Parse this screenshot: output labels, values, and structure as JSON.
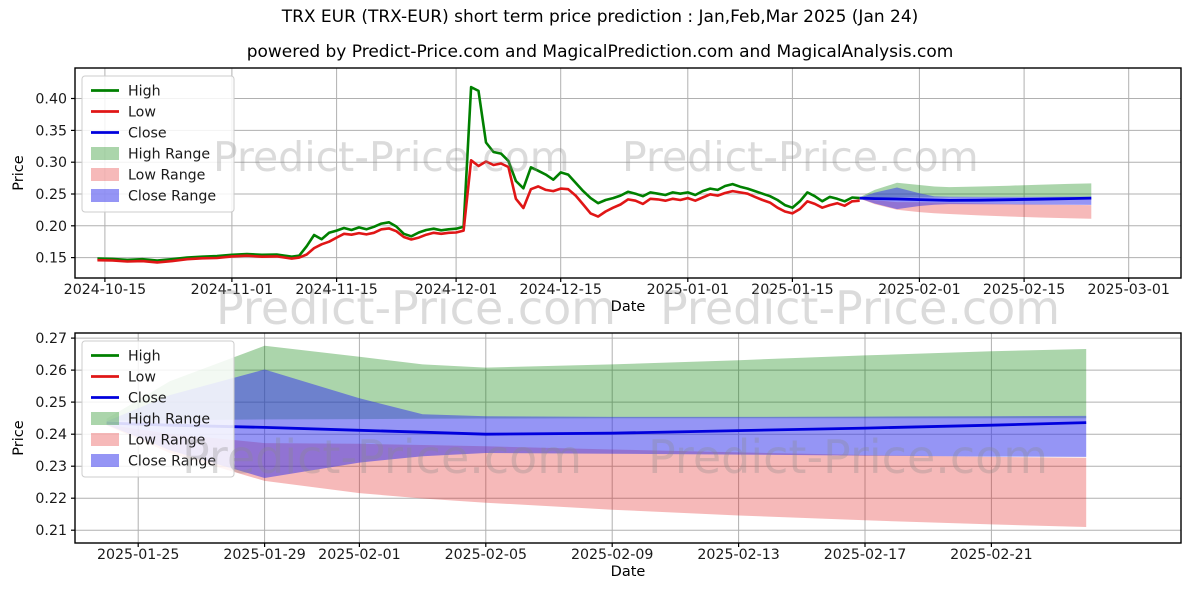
{
  "page": {
    "title": "TRX EUR (TRX-EUR) short term price prediction : Jan,Feb,Mar 2025 (Jan 24)",
    "subtitle": "powered by Predict-Price.com and MagicalPrediction.com and MagicalAnalysis.com"
  },
  "watermark": {
    "text": "Predict-Price.com"
  },
  "colors": {
    "high": "#008000",
    "low": "#e01616",
    "close": "#0000dd",
    "high_fill": "rgba(0,128,0,0.33)",
    "low_fill": "rgba(225,22,22,0.30)",
    "close_fill": "rgba(51,51,235,0.52)",
    "grid": "#b0b0b0",
    "spine": "#000000",
    "tick_text": "#1a1a1a"
  },
  "legend": {
    "items": [
      {
        "label": "High",
        "kind": "line",
        "color_key": "high"
      },
      {
        "label": "Low",
        "kind": "line",
        "color_key": "low"
      },
      {
        "label": "Close",
        "kind": "line",
        "color_key": "close"
      },
      {
        "label": "High Range",
        "kind": "patch",
        "color_key": "high_fill"
      },
      {
        "label": "Low Range",
        "kind": "patch",
        "color_key": "low_fill"
      },
      {
        "label": "Close Range",
        "kind": "patch",
        "color_key": "close_fill"
      }
    ]
  },
  "chart_data": [
    {
      "type": "line",
      "name": "main-price-chart",
      "xlabel": "Date",
      "ylabel": "Price",
      "x_domain": [
        "2024-10-11",
        "2025-03-08"
      ],
      "y_domain": [
        0.118,
        0.448
      ],
      "x_ticks": [
        "2024-10-15",
        "2024-11-01",
        "2024-11-15",
        "2024-12-01",
        "2024-12-15",
        "2025-01-01",
        "2025-01-15",
        "2025-02-01",
        "2025-02-15",
        "2025-03-01"
      ],
      "y_ticks": [
        "0.15",
        "0.20",
        "0.25",
        "0.30",
        "0.35",
        "0.40"
      ],
      "grid": true,
      "legend_position": "upper-left",
      "history": {
        "dates": [
          "2024-10-14",
          "2024-10-16",
          "2024-10-18",
          "2024-10-20",
          "2024-10-22",
          "2024-10-24",
          "2024-10-26",
          "2024-10-28",
          "2024-10-30",
          "2024-11-01",
          "2024-11-03",
          "2024-11-05",
          "2024-11-07",
          "2024-11-09",
          "2024-11-10",
          "2024-11-11",
          "2024-11-12",
          "2024-11-13",
          "2024-11-14",
          "2024-11-15",
          "2024-11-16",
          "2024-11-17",
          "2024-11-18",
          "2024-11-19",
          "2024-11-20",
          "2024-11-21",
          "2024-11-22",
          "2024-11-23",
          "2024-11-24",
          "2024-11-25",
          "2024-11-26",
          "2024-11-27",
          "2024-11-28",
          "2024-11-29",
          "2024-11-30",
          "2024-12-01",
          "2024-12-02",
          "2024-12-03",
          "2024-12-04",
          "2024-12-05",
          "2024-12-06",
          "2024-12-07",
          "2024-12-08",
          "2024-12-09",
          "2024-12-10",
          "2024-12-11",
          "2024-12-12",
          "2024-12-13",
          "2024-12-14",
          "2024-12-15",
          "2024-12-16",
          "2024-12-17",
          "2024-12-18",
          "2024-12-19",
          "2024-12-20",
          "2024-12-21",
          "2024-12-22",
          "2024-12-23",
          "2024-12-24",
          "2024-12-25",
          "2024-12-26",
          "2024-12-27",
          "2024-12-28",
          "2024-12-29",
          "2024-12-30",
          "2024-12-31",
          "2025-01-01",
          "2025-01-02",
          "2025-01-03",
          "2025-01-04",
          "2025-01-05",
          "2025-01-06",
          "2025-01-07",
          "2025-01-08",
          "2025-01-09",
          "2025-01-10",
          "2025-01-11",
          "2025-01-12",
          "2025-01-13",
          "2025-01-14",
          "2025-01-15",
          "2025-01-16",
          "2025-01-17",
          "2025-01-18",
          "2025-01-19",
          "2025-01-20",
          "2025-01-21",
          "2025-01-22",
          "2025-01-23",
          "2025-01-24"
        ],
        "high": [
          0.1485,
          0.148,
          0.1465,
          0.1475,
          0.1455,
          0.1475,
          0.15,
          0.1515,
          0.1525,
          0.1545,
          0.1555,
          0.1545,
          0.155,
          0.1515,
          0.153,
          0.168,
          0.1855,
          0.179,
          0.189,
          0.1925,
          0.1965,
          0.1935,
          0.1975,
          0.1945,
          0.1985,
          0.2035,
          0.2055,
          0.199,
          0.1875,
          0.1835,
          0.1895,
          0.1935,
          0.1955,
          0.193,
          0.1945,
          0.1955,
          0.1985,
          0.418,
          0.412,
          0.331,
          0.316,
          0.3135,
          0.302,
          0.2705,
          0.259,
          0.292,
          0.2865,
          0.2805,
          0.2725,
          0.284,
          0.2805,
          0.2675,
          0.2545,
          0.2435,
          0.2355,
          0.2405,
          0.2435,
          0.2475,
          0.2535,
          0.2505,
          0.2465,
          0.2525,
          0.2505,
          0.2485,
          0.2525,
          0.2505,
          0.2525,
          0.2485,
          0.2545,
          0.2585,
          0.2565,
          0.2625,
          0.2655,
          0.2615,
          0.2585,
          0.2545,
          0.2505,
          0.2465,
          0.2405,
          0.2325,
          0.2285,
          0.2385,
          0.2525,
          0.2465,
          0.2385,
          0.2455,
          0.2425,
          0.2385,
          0.2445,
          0.2435
        ],
        "low": [
          0.146,
          0.1455,
          0.144,
          0.1445,
          0.1425,
          0.1445,
          0.1475,
          0.149,
          0.1495,
          0.152,
          0.153,
          0.1515,
          0.152,
          0.1485,
          0.15,
          0.155,
          0.165,
          0.171,
          0.175,
          0.1815,
          0.1875,
          0.186,
          0.1885,
          0.1865,
          0.189,
          0.1945,
          0.196,
          0.1915,
          0.1825,
          0.1785,
          0.1815,
          0.186,
          0.189,
          0.1875,
          0.189,
          0.1895,
          0.1925,
          0.303,
          0.294,
          0.301,
          0.2955,
          0.298,
          0.2925,
          0.2425,
          0.228,
          0.2575,
          0.262,
          0.2565,
          0.2545,
          0.2585,
          0.2575,
          0.2475,
          0.2335,
          0.2195,
          0.2145,
          0.2225,
          0.2285,
          0.2335,
          0.2415,
          0.2395,
          0.2345,
          0.2425,
          0.2415,
          0.2395,
          0.2425,
          0.2405,
          0.2435,
          0.2395,
          0.2445,
          0.2495,
          0.2475,
          0.2515,
          0.2545,
          0.2525,
          0.2505,
          0.2455,
          0.2405,
          0.2365,
          0.2285,
          0.2225,
          0.2195,
          0.2265,
          0.2385,
          0.2345,
          0.2285,
          0.2325,
          0.2355,
          0.2315,
          0.2385,
          0.2395
        ]
      },
      "prediction": {
        "dates": [
          "2025-01-24",
          "2025-01-26",
          "2025-01-29",
          "2025-02-01",
          "2025-02-03",
          "2025-02-05",
          "2025-02-09",
          "2025-02-13",
          "2025-02-17",
          "2025-02-21",
          "2025-02-24"
        ],
        "close": [
          0.2435,
          0.2428,
          0.2421,
          0.2412,
          0.2406,
          0.24,
          0.2403,
          0.2411,
          0.2419,
          0.2428,
          0.2436
        ],
        "high_max": [
          0.2448,
          0.2565,
          0.2676,
          0.2642,
          0.2618,
          0.2608,
          0.2618,
          0.2631,
          0.2646,
          0.2659,
          0.2666
        ],
        "high_min": [
          0.2442,
          0.2444,
          0.2446,
          0.2447,
          0.2448,
          0.2449,
          0.245,
          0.245,
          0.245,
          0.245,
          0.245
        ],
        "low_max": [
          0.243,
          0.2401,
          0.2372,
          0.237,
          0.2366,
          0.2362,
          0.2352,
          0.2343,
          0.2335,
          0.2329,
          0.2326
        ],
        "low_min": [
          0.2428,
          0.2341,
          0.2254,
          0.2216,
          0.2199,
          0.2186,
          0.2164,
          0.2146,
          0.2131,
          0.2118,
          0.211
        ],
        "close_max": [
          0.244,
          0.2522,
          0.2602,
          0.2512,
          0.2462,
          0.2456,
          0.2454,
          0.2454,
          0.2455,
          0.2456,
          0.2457
        ],
        "close_min": [
          0.243,
          0.235,
          0.2263,
          0.2311,
          0.2331,
          0.2341,
          0.2339,
          0.2336,
          0.2333,
          0.233,
          0.2329
        ]
      }
    },
    {
      "type": "area",
      "name": "prediction-zoom-chart",
      "xlabel": "Date",
      "ylabel": "Price",
      "x_domain": [
        "2025-01-23",
        "2025-02-27"
      ],
      "y_domain": [
        0.206,
        0.2716
      ],
      "x_ticks": [
        "2025-01-25",
        "2025-01-29",
        "2025-02-01",
        "2025-02-05",
        "2025-02-09",
        "2025-02-13",
        "2025-02-17",
        "2025-02-21"
      ],
      "y_ticks": [
        "0.21",
        "0.22",
        "0.23",
        "0.24",
        "0.25",
        "0.26",
        "0.27"
      ],
      "grid": true,
      "legend_position": "upper-left",
      "prediction": {
        "dates": [
          "2025-01-24",
          "2025-01-26",
          "2025-01-29",
          "2025-02-01",
          "2025-02-03",
          "2025-02-05",
          "2025-02-09",
          "2025-02-13",
          "2025-02-17",
          "2025-02-21",
          "2025-02-24"
        ],
        "close": [
          0.2435,
          0.2428,
          0.2421,
          0.2412,
          0.2406,
          0.24,
          0.2403,
          0.2411,
          0.2419,
          0.2428,
          0.2436
        ],
        "high_max": [
          0.2448,
          0.2565,
          0.2676,
          0.2642,
          0.2618,
          0.2608,
          0.2618,
          0.2631,
          0.2646,
          0.2659,
          0.2666
        ],
        "high_min": [
          0.2442,
          0.2444,
          0.2446,
          0.2447,
          0.2448,
          0.2449,
          0.245,
          0.245,
          0.245,
          0.245,
          0.245
        ],
        "low_max": [
          0.243,
          0.2401,
          0.2372,
          0.237,
          0.2366,
          0.2362,
          0.2352,
          0.2343,
          0.2335,
          0.2329,
          0.2326
        ],
        "low_min": [
          0.2428,
          0.2341,
          0.2254,
          0.2216,
          0.2199,
          0.2186,
          0.2164,
          0.2146,
          0.2131,
          0.2118,
          0.211
        ],
        "close_max": [
          0.244,
          0.2522,
          0.2602,
          0.2512,
          0.2462,
          0.2456,
          0.2454,
          0.2454,
          0.2455,
          0.2456,
          0.2457
        ],
        "close_min": [
          0.243,
          0.235,
          0.2263,
          0.2311,
          0.2331,
          0.2341,
          0.2339,
          0.2336,
          0.2333,
          0.233,
          0.2329
        ]
      }
    }
  ]
}
